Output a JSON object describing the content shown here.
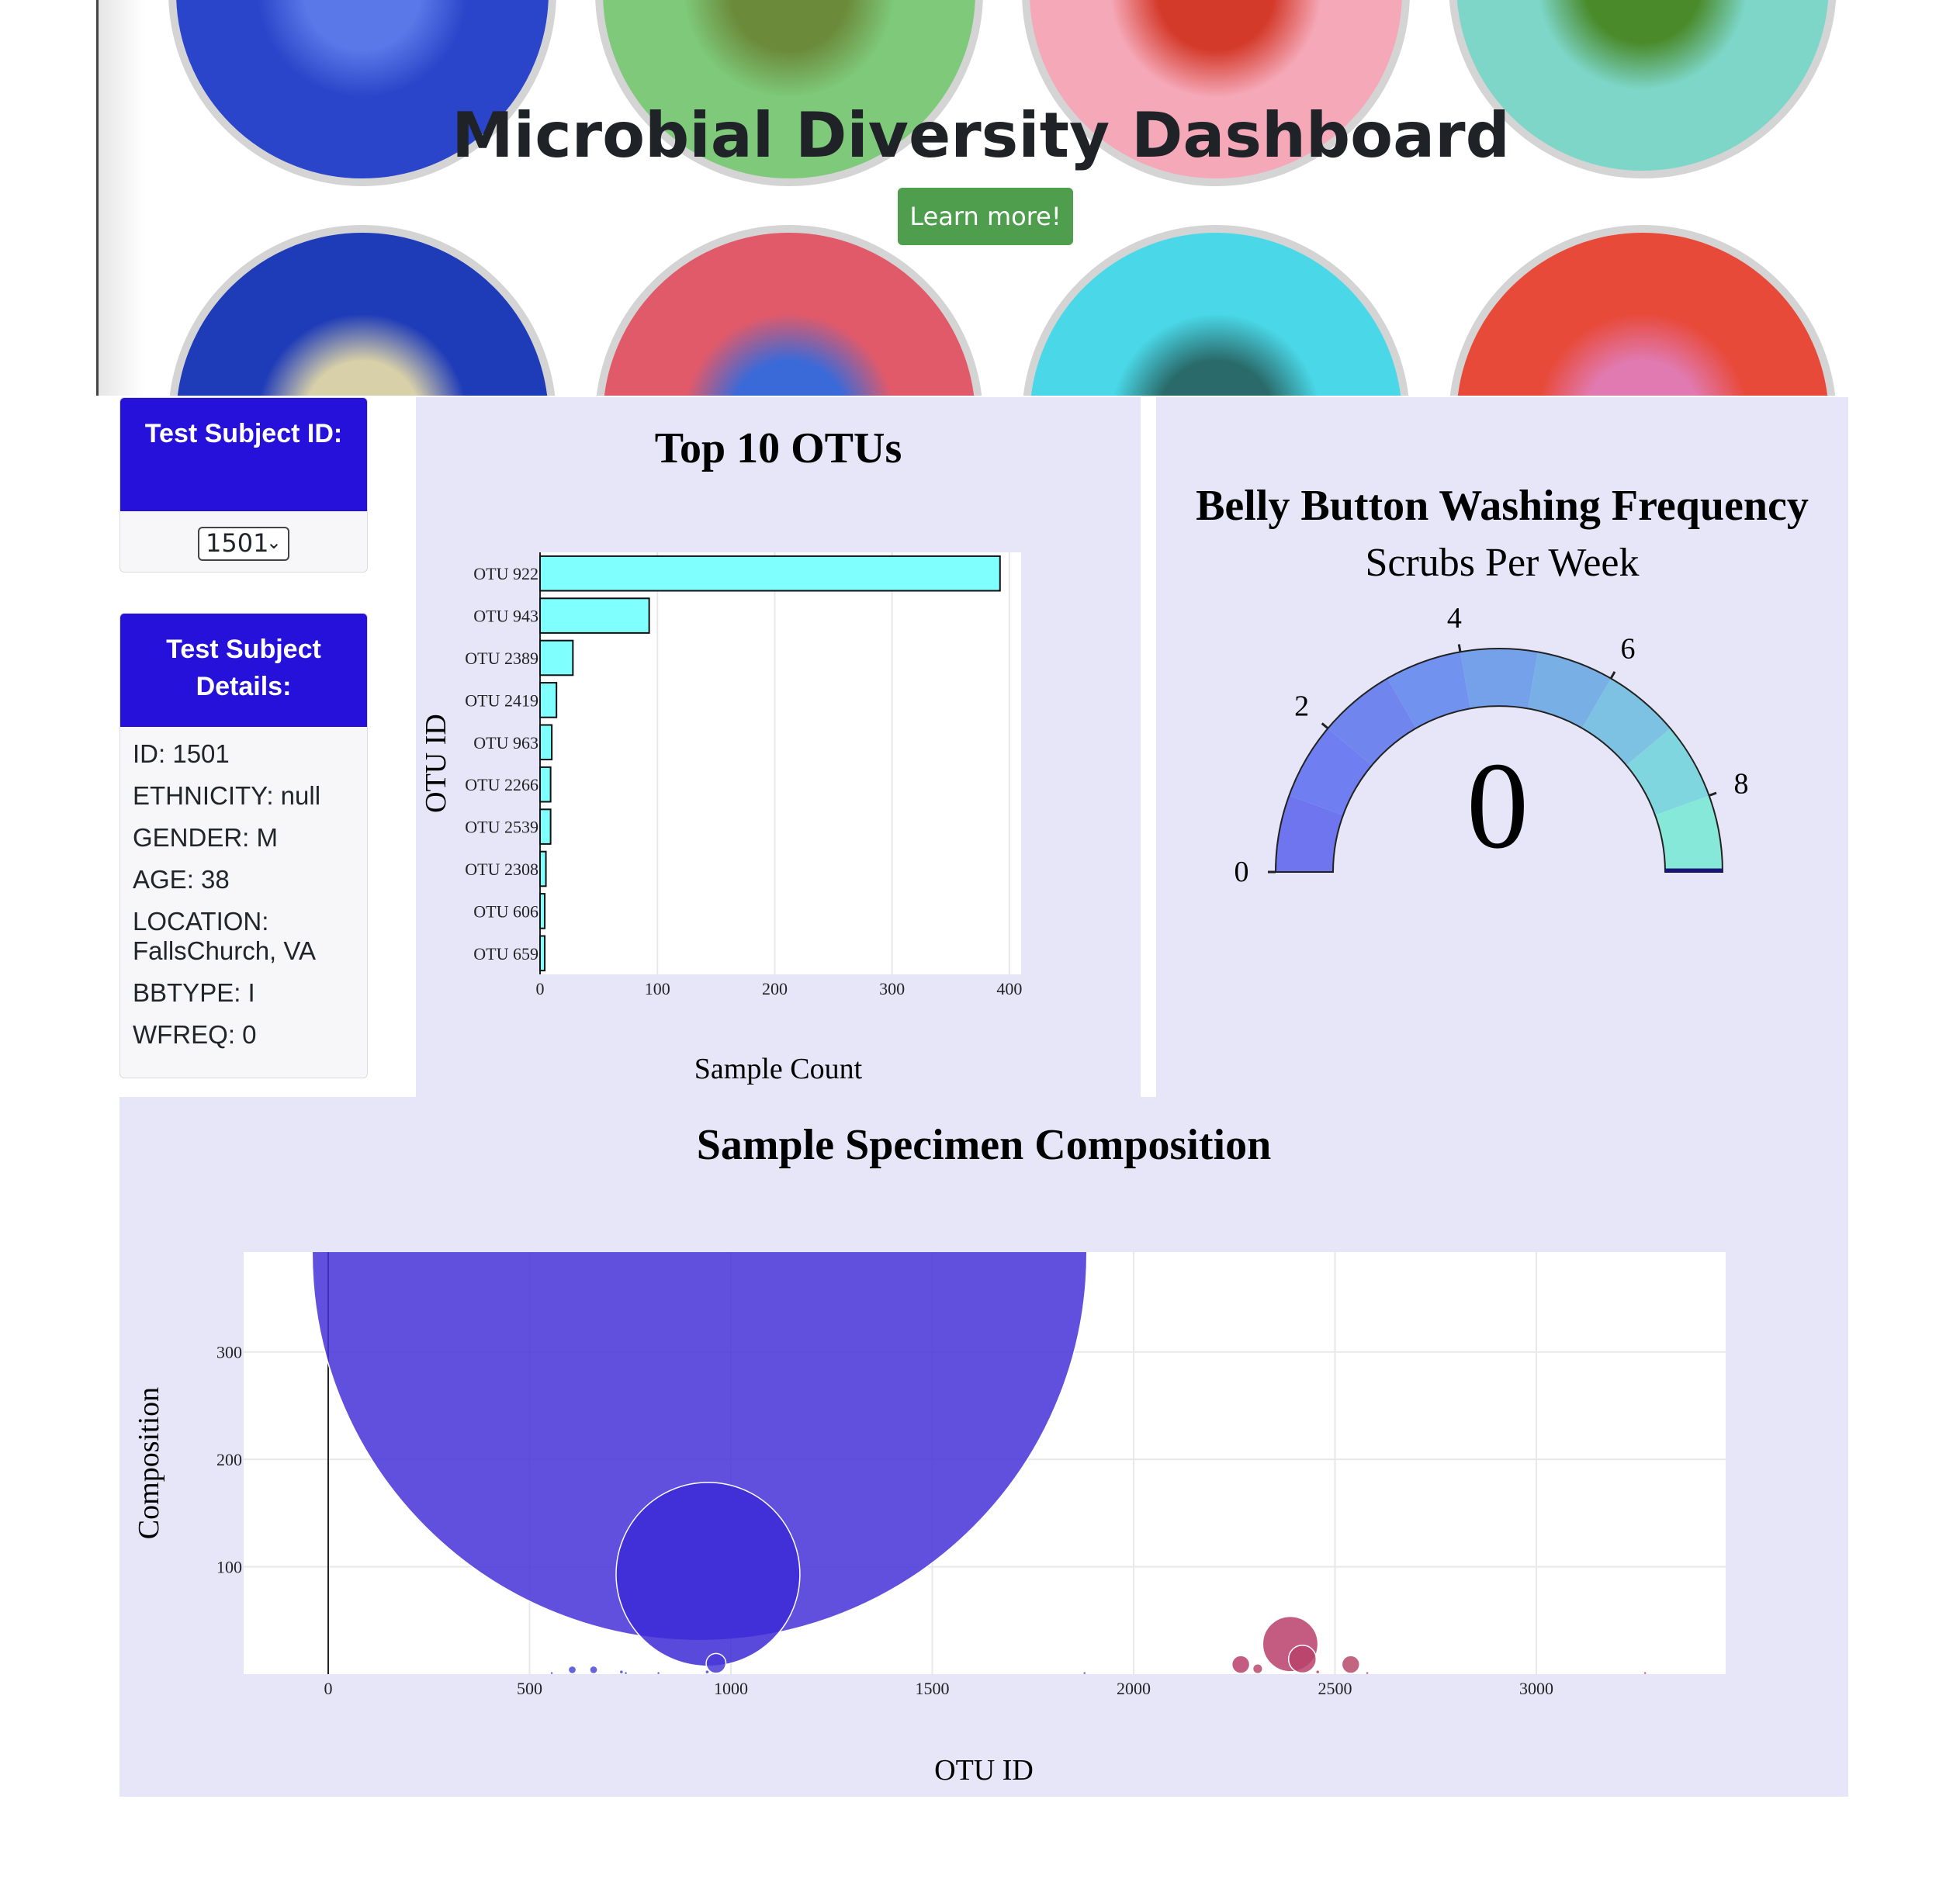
{
  "hero": {
    "title": "Microbial Diversity Dashboard",
    "button_label": "Learn more!",
    "dishes": [
      {
        "color": "#2a45c9",
        "inner": "#5a78e8"
      },
      {
        "color": "#7ec97a",
        "inner": "#6b8a3a"
      },
      {
        "color": "#f5a8b8",
        "inner": "#d43a2a"
      },
      {
        "color": "#7dd6c8",
        "inner": "#4a8a2a"
      },
      {
        "color": "#1e3bb8",
        "inner": "#d8d0a8"
      },
      {
        "color": "#e05a6a",
        "inner": "#3a6ad8"
      },
      {
        "color": "#4ad8e8",
        "inner": "#2a6a6a"
      },
      {
        "color": "#e84a3a",
        "inner": "#e07ab0"
      }
    ]
  },
  "subject_select": {
    "header": "Test Subject ID:",
    "value": "1501"
  },
  "metadata": {
    "header": "Test Subject Details:",
    "rows": [
      "ID: 1501",
      "ETHNICITY: null",
      "GENDER: M",
      "AGE: 38",
      "LOCATION: FallsChurch, VA",
      "BBTYPE: I",
      "WFREQ: 0"
    ]
  },
  "colors": {
    "header_blue": "#2511d9",
    "panel_bg": "#e6e6f8",
    "bar_fill": "#80ffff",
    "button_green": "#4e9e4e"
  },
  "chart_data": [
    {
      "type": "bar",
      "orientation": "horizontal",
      "title": "Top 10 OTUs",
      "xlabel": "Sample Count",
      "ylabel": "OTU ID",
      "categories": [
        "OTU 922",
        "OTU 943",
        "OTU 2389",
        "OTU 2419",
        "OTU 963",
        "OTU 2266",
        "OTU 2539",
        "OTU 2308",
        "OTU 606",
        "OTU 659"
      ],
      "values": [
        392,
        93,
        28,
        14,
        10,
        9,
        9,
        5,
        4,
        4
      ],
      "xlim": [
        0,
        410
      ],
      "xticks": [
        0,
        100,
        200,
        300,
        400
      ],
      "grid": true
    },
    {
      "type": "gauge",
      "title": "Belly Button Washing Frequency",
      "subtitle": "Scrubs Per Week",
      "value": 0,
      "range": [
        0,
        9
      ],
      "ticks": [
        0,
        2,
        4,
        6,
        8
      ],
      "steps": [
        {
          "range": [
            0,
            1
          ],
          "color": "#6f75ef"
        },
        {
          "range": [
            1,
            2
          ],
          "color": "#6f7ef0"
        },
        {
          "range": [
            2,
            3
          ],
          "color": "#7086ee"
        },
        {
          "range": [
            3,
            4
          ],
          "color": "#7192ee"
        },
        {
          "range": [
            4,
            5
          ],
          "color": "#75a0ea"
        },
        {
          "range": [
            5,
            6
          ],
          "color": "#78b0e6"
        },
        {
          "range": [
            6,
            7
          ],
          "color": "#7dc2e2"
        },
        {
          "range": [
            7,
            8
          ],
          "color": "#80d6de"
        },
        {
          "range": [
            8,
            9
          ],
          "color": "#85e8d8"
        }
      ]
    },
    {
      "type": "scatter",
      "title": "Sample Specimen Composition",
      "xlabel": "OTU ID",
      "ylabel": "Composition",
      "xlim": [
        -210,
        3470
      ],
      "ylim": [
        0,
        393
      ],
      "xticks": [
        0,
        500,
        1000,
        1500,
        2000,
        2500,
        3000
      ],
      "yticks": [
        100,
        200,
        300
      ],
      "points": [
        {
          "x": 922,
          "y": 392,
          "size": 392,
          "color": "#4530d8"
        },
        {
          "x": 943,
          "y": 93,
          "size": 93,
          "color": "#3c2ad6"
        },
        {
          "x": 2389,
          "y": 28,
          "size": 28,
          "color": "#b8406a"
        },
        {
          "x": 2419,
          "y": 14,
          "size": 14,
          "color": "#b8426a"
        },
        {
          "x": 963,
          "y": 10,
          "size": 10,
          "color": "#4a38d8"
        },
        {
          "x": 2266,
          "y": 9,
          "size": 9,
          "color": "#b8406a"
        },
        {
          "x": 2539,
          "y": 9,
          "size": 9,
          "color": "#b84a6a"
        },
        {
          "x": 2308,
          "y": 5,
          "size": 5,
          "color": "#b84a6a"
        },
        {
          "x": 606,
          "y": 4,
          "size": 4,
          "color": "#4a4ad8"
        },
        {
          "x": 659,
          "y": 4,
          "size": 4,
          "color": "#4a4ad8"
        },
        {
          "x": 941,
          "y": 2,
          "size": 2,
          "color": "#4a4ad8"
        },
        {
          "x": 728,
          "y": 2,
          "size": 2,
          "color": "#4a4ad8"
        },
        {
          "x": 2457,
          "y": 2,
          "size": 2,
          "color": "#b84a6a"
        },
        {
          "x": 739,
          "y": 1,
          "size": 1,
          "color": "#4a4ad8"
        },
        {
          "x": 2580,
          "y": 1,
          "size": 1,
          "color": "#b84a6a"
        },
        {
          "x": 3270,
          "y": 1,
          "size": 1,
          "color": "#c0506a"
        },
        {
          "x": 1878,
          "y": 1,
          "size": 1,
          "color": "#8a3a9a"
        },
        {
          "x": 555,
          "y": 1,
          "size": 1,
          "color": "#4a4ad8"
        },
        {
          "x": 820,
          "y": 1,
          "size": 1,
          "color": "#4a4ad8"
        }
      ]
    }
  ]
}
